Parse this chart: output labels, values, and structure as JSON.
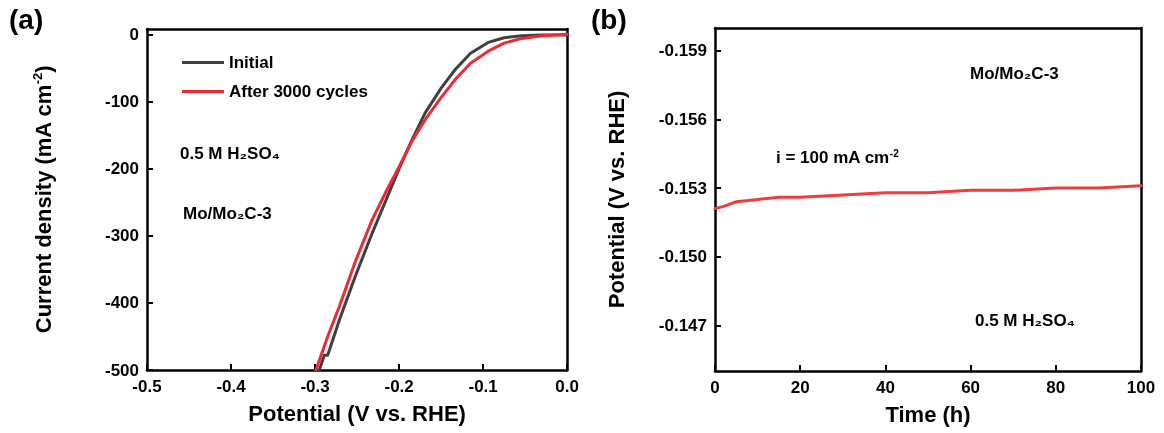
{
  "chart_data": [
    {
      "type": "line",
      "title": "(a)",
      "xlabel": "Potential (V vs. RHE)",
      "ylabel": "Current density (mA cm$^{-2}$)",
      "xlim": [
        -0.5,
        0
      ],
      "xticks": [
        -0.5,
        -0.4,
        -0.3,
        -0.2,
        -0.1,
        {
          "value": 0,
          "label": "0.0"
        }
      ],
      "ylim": [
        -500,
        8
      ],
      "yticks": [
        -500,
        -400,
        -300,
        -200,
        -100,
        0
      ],
      "legend": "top left",
      "grid": false,
      "annotations": [
        "0.5 M H₂SO₄",
        "Mo/Mo₂C-3"
      ],
      "series": [
        {
          "name": "Initial",
          "color": "#404040",
          "x": [
            -0.295,
            -0.289,
            -0.285,
            -0.271,
            -0.252,
            -0.232,
            -0.215,
            -0.2,
            -0.185,
            -0.169,
            -0.15,
            -0.133,
            -0.115,
            -0.094,
            -0.075,
            -0.054,
            -0.03,
            0
          ],
          "values": [
            -500,
            -478,
            -478,
            -425,
            -360,
            -296,
            -245,
            -200,
            -158,
            -117,
            -80,
            -52,
            -28,
            -12,
            -5,
            -2,
            -1,
            -1
          ]
        },
        {
          "name": "After 3000 cycles",
          "color": "#ee2a35",
          "x": [
            -0.299,
            -0.285,
            -0.271,
            -0.252,
            -0.232,
            -0.215,
            -0.2,
            -0.185,
            -0.169,
            -0.15,
            -0.133,
            -0.115,
            -0.094,
            -0.075,
            -0.054,
            -0.03,
            0
          ],
          "values": [
            -500,
            -450,
            -405,
            -338,
            -276,
            -233,
            -197,
            -160,
            -127,
            -94,
            -67,
            -43,
            -25,
            -13,
            -6,
            -2,
            0
          ]
        }
      ]
    },
    {
      "type": "line",
      "title": "(b)",
      "xlabel": "Time (h)",
      "ylabel": "Potential (V vs. RHE)",
      "xlim": [
        0,
        100
      ],
      "xticks": [
        0,
        20,
        40,
        60,
        80,
        100
      ],
      "ylim": [
        -0.145,
        -0.16
      ],
      "yticks": [
        -0.159,
        -0.156,
        -0.153,
        {
          "value": -0.15,
          "label": "-0.150"
        },
        -0.147
      ],
      "grid": false,
      "annotations": [
        "Mo/Mo₂C-3",
        "i = 100 mA cm$^{-2}$",
        "0.5 M H₂SO₄"
      ],
      "series": [
        {
          "color": "#f03c3c",
          "x": [
            0,
            2,
            5,
            10,
            15,
            20,
            30,
            40,
            50,
            60,
            70,
            80,
            90,
            100
          ],
          "values": [
            -0.1521,
            -0.1522,
            -0.1524,
            -0.1525,
            -0.1526,
            -0.1526,
            -0.1527,
            -0.1528,
            -0.1528,
            -0.1529,
            -0.1529,
            -0.153,
            -0.153,
            -0.1531
          ]
        }
      ]
    }
  ]
}
